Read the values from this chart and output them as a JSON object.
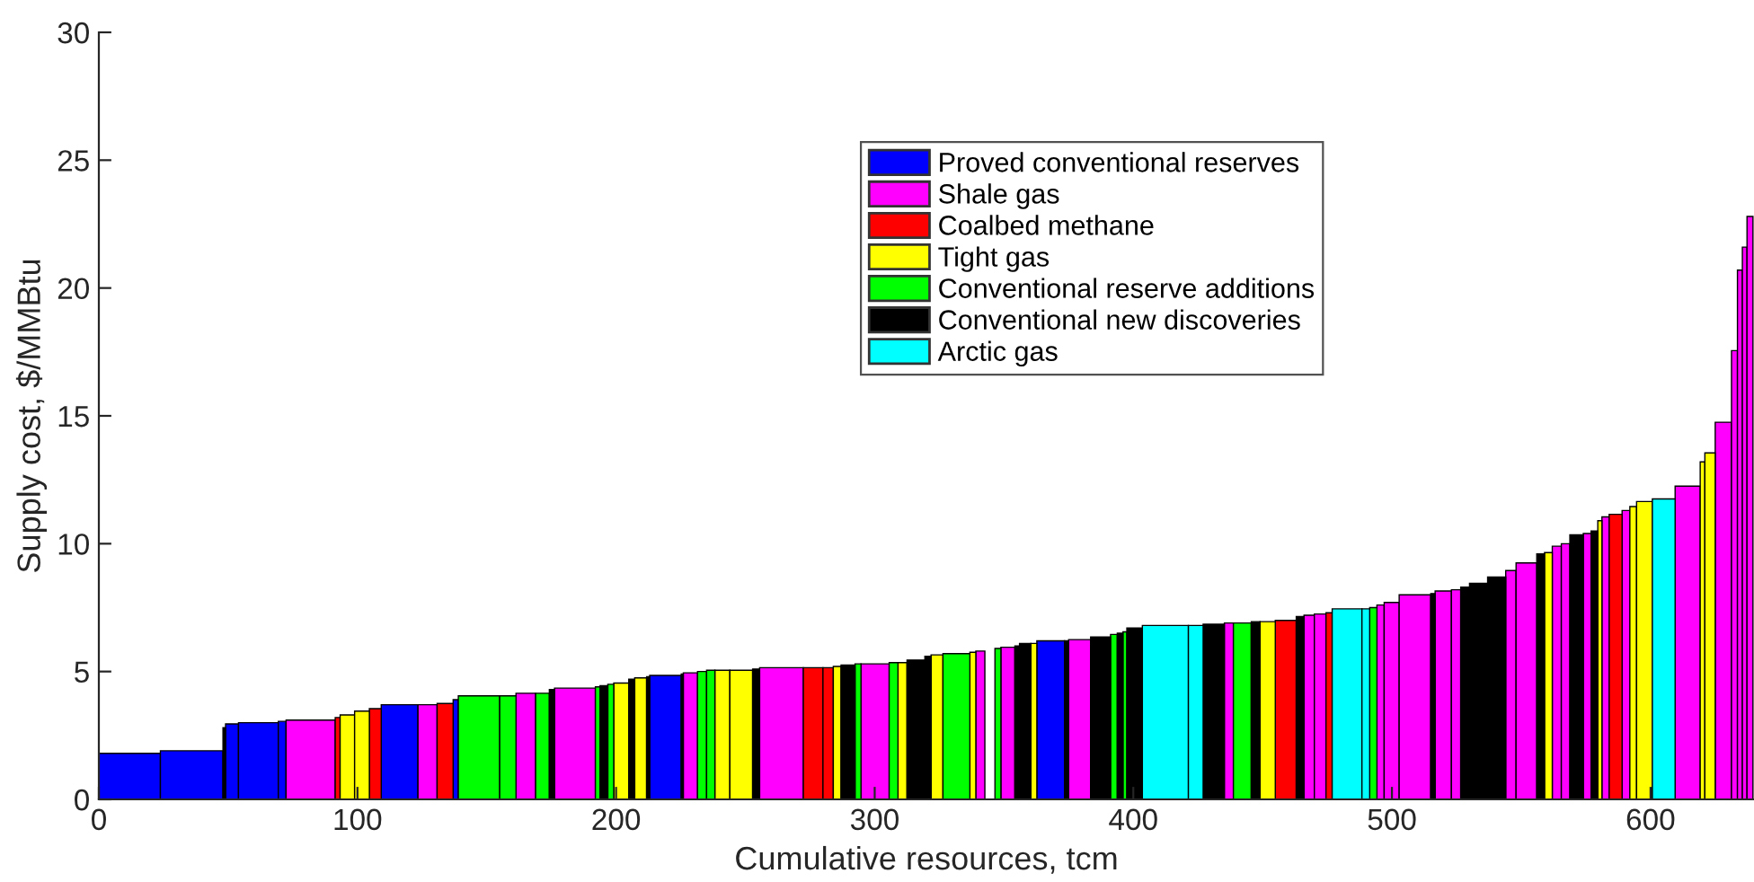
{
  "chart_data": {
    "type": "histogram",
    "xlabel": "Cumulative resources, tcm",
    "ylabel": "Supply cost, $/MMBtu",
    "xlim": [
      0,
      640
    ],
    "xticks": [
      0,
      100,
      200,
      300,
      400,
      500,
      600
    ],
    "ylim": [
      0,
      30
    ],
    "yticks": [
      0,
      5,
      10,
      15,
      20,
      25,
      30
    ],
    "grid": false,
    "legend": "top",
    "bins": [
      0,
      23.8,
      48,
      49,
      54,
      69.4,
      72.4,
      91.4,
      93.3,
      98.9,
      104.6,
      109.2,
      123.4,
      130.8,
      137,
      139,
      155,
      161.3,
      168.9,
      174.2,
      176.2,
      192,
      193.8,
      196.8,
      199.1,
      204.9,
      207.2,
      211.8,
      213,
      225.2,
      226,
      231.5,
      235,
      238.2,
      244,
      252.8,
      255.5,
      272.4,
      280,
      284,
      287,
      292.4,
      294.7,
      305.6,
      309,
      312.5,
      319.4,
      321.8,
      326.4,
      336.8,
      339.1,
      342.6,
      346.5,
      348.8,
      354.2,
      356,
      360.4,
      362.7,
      373.4,
      375,
      383.5,
      391.2,
      393.8,
      396,
      397.5,
      403.5,
      421.3,
      427,
      435.2,
      438.7,
      445.6,
      449,
      454.9,
      463,
      466,
      470,
      474.5,
      476.9,
      488.4,
      491.4,
      494.2,
      497,
      502.8,
      515,
      516.7,
      523,
      526.6,
      530,
      537,
      544,
      548,
      556,
      559,
      562,
      565.5,
      568.8,
      574,
      577,
      579.6,
      581.2,
      584,
      589,
      592,
      594.6,
      600.7,
      609.5,
      619.2,
      621,
      625,
      631.3,
      633.6,
      635.5,
      637.3,
      639.6
    ],
    "series": [
      {
        "name": "Proved conventional reserves",
        "color": "#0000ff",
        "values": [
          1.8,
          1.9,
          null,
          2.95,
          3.0,
          3.05,
          null,
          null,
          null,
          null,
          null,
          3.7,
          null,
          null,
          3.9,
          null,
          null,
          null,
          null,
          null,
          null,
          null,
          null,
          null,
          null,
          null,
          null,
          null,
          4.85,
          null,
          null,
          null,
          null,
          null,
          null,
          null,
          null,
          null,
          null,
          null,
          null,
          null,
          null,
          null,
          null,
          null,
          null,
          null,
          null,
          null,
          null,
          null,
          null,
          null,
          null,
          null,
          null,
          6.2,
          null,
          null,
          null,
          null,
          null,
          null,
          null,
          null,
          null,
          null,
          null,
          null,
          null,
          null,
          null,
          null,
          null,
          null,
          null,
          null,
          null,
          null,
          null,
          null,
          null,
          null,
          null,
          null,
          null,
          null,
          null,
          null,
          null,
          null,
          null,
          null,
          null,
          null,
          null,
          null,
          null,
          null,
          null,
          null,
          null,
          null,
          null,
          null,
          null,
          null,
          null,
          null,
          null,
          null,
          null
        ]
      },
      {
        "name": "Shale gas",
        "color": "#ff00ff",
        "values": [
          null,
          null,
          null,
          null,
          null,
          null,
          3.1,
          null,
          null,
          null,
          null,
          null,
          3.7,
          null,
          null,
          null,
          null,
          4.15,
          null,
          null,
          4.35,
          null,
          null,
          null,
          null,
          null,
          null,
          null,
          null,
          null,
          4.95,
          null,
          null,
          null,
          null,
          null,
          5.15,
          null,
          null,
          null,
          null,
          null,
          5.3,
          null,
          null,
          null,
          null,
          null,
          null,
          null,
          5.8,
          null,
          null,
          5.95,
          null,
          null,
          null,
          null,
          null,
          6.25,
          null,
          null,
          null,
          null,
          null,
          null,
          null,
          null,
          6.9,
          null,
          null,
          null,
          null,
          null,
          7.2,
          7.25,
          null,
          null,
          null,
          null,
          7.6,
          7.7,
          8.0,
          null,
          8.15,
          8.2,
          null,
          null,
          null,
          8.95,
          9.25,
          null,
          null,
          9.9,
          10.0,
          null,
          10.4,
          null,
          null,
          11.05,
          null,
          11.3,
          null,
          null,
          null,
          12.25,
          null,
          null,
          14.75,
          17.55,
          20.7,
          21.6,
          22.8
        ]
      },
      {
        "name": "Coalbed methane",
        "color": "#ff0000",
        "values": [
          null,
          null,
          null,
          null,
          null,
          null,
          null,
          3.2,
          null,
          null,
          3.55,
          null,
          null,
          3.75,
          null,
          null,
          null,
          null,
          null,
          null,
          null,
          null,
          null,
          null,
          null,
          null,
          null,
          null,
          null,
          null,
          null,
          null,
          null,
          null,
          null,
          null,
          null,
          5.15,
          5.15,
          null,
          null,
          null,
          null,
          null,
          null,
          null,
          null,
          null,
          null,
          null,
          null,
          null,
          null,
          null,
          null,
          null,
          null,
          null,
          null,
          null,
          null,
          null,
          null,
          null,
          null,
          null,
          null,
          null,
          null,
          null,
          null,
          null,
          7.0,
          null,
          null,
          null,
          7.3,
          null,
          null,
          null,
          null,
          null,
          null,
          null,
          null,
          null,
          null,
          null,
          null,
          null,
          null,
          null,
          null,
          null,
          null,
          null,
          null,
          null,
          null,
          null,
          11.15,
          null,
          null,
          null,
          null,
          null,
          null,
          null,
          null,
          null,
          null,
          null,
          null
        ]
      },
      {
        "name": "Tight gas",
        "color": "#ffff00",
        "values": [
          null,
          null,
          null,
          null,
          null,
          null,
          null,
          null,
          3.3,
          3.45,
          null,
          null,
          null,
          null,
          null,
          null,
          null,
          null,
          null,
          null,
          null,
          null,
          null,
          null,
          4.55,
          null,
          4.75,
          null,
          null,
          null,
          null,
          null,
          null,
          5.05,
          5.05,
          null,
          null,
          null,
          null,
          5.2,
          null,
          null,
          null,
          null,
          5.35,
          null,
          null,
          5.65,
          null,
          5.75,
          null,
          null,
          null,
          null,
          null,
          null,
          6.1,
          null,
          null,
          null,
          null,
          null,
          null,
          null,
          null,
          null,
          null,
          null,
          null,
          null,
          null,
          6.95,
          null,
          null,
          null,
          null,
          null,
          null,
          null,
          null,
          null,
          null,
          null,
          null,
          null,
          null,
          null,
          null,
          null,
          null,
          null,
          null,
          9.65,
          null,
          null,
          null,
          null,
          null,
          10.9,
          null,
          null,
          null,
          11.45,
          11.65,
          null,
          null,
          13.2,
          13.55,
          null,
          null,
          null,
          null,
          null
        ]
      },
      {
        "name": "Conventional reserve additions",
        "color": "#00ff00",
        "values": [
          null,
          null,
          null,
          null,
          null,
          null,
          null,
          null,
          null,
          null,
          null,
          null,
          null,
          null,
          null,
          4.05,
          4.05,
          null,
          4.15,
          null,
          null,
          4.4,
          null,
          4.5,
          null,
          null,
          null,
          null,
          null,
          null,
          null,
          5.0,
          5.05,
          null,
          null,
          null,
          null,
          null,
          null,
          null,
          null,
          5.3,
          null,
          5.35,
          null,
          null,
          null,
          null,
          5.7,
          null,
          null,
          null,
          5.9,
          null,
          null,
          null,
          null,
          null,
          null,
          null,
          null,
          6.45,
          null,
          6.55,
          null,
          null,
          null,
          null,
          null,
          6.9,
          null,
          null,
          null,
          null,
          null,
          null,
          null,
          null,
          null,
          7.5,
          null,
          null,
          null,
          null,
          null,
          null,
          null,
          null,
          null,
          null,
          null,
          null,
          null,
          null,
          null,
          null,
          null,
          null,
          null,
          null,
          null,
          null,
          null,
          null,
          null,
          null,
          null,
          null,
          null,
          null,
          null,
          null,
          null
        ]
      },
      {
        "name": "Conventional new discoveries",
        "color": "#000000",
        "values": [
          null,
          null,
          2.8,
          null,
          null,
          null,
          null,
          null,
          null,
          null,
          null,
          null,
          null,
          null,
          null,
          null,
          null,
          null,
          null,
          4.3,
          null,
          null,
          4.45,
          null,
          null,
          4.7,
          null,
          4.8,
          null,
          4.9,
          null,
          null,
          null,
          null,
          null,
          5.1,
          null,
          null,
          null,
          null,
          5.25,
          null,
          null,
          null,
          null,
          5.45,
          5.6,
          null,
          null,
          null,
          null,
          null,
          null,
          null,
          6.0,
          6.1,
          null,
          null,
          6.2,
          null,
          6.35,
          null,
          6.5,
          null,
          6.7,
          null,
          null,
          6.85,
          null,
          null,
          6.95,
          null,
          null,
          7.15,
          null,
          null,
          null,
          null,
          null,
          null,
          null,
          null,
          null,
          8.05,
          null,
          null,
          8.3,
          8.45,
          8.7,
          null,
          null,
          9.6,
          null,
          null,
          null,
          10.35,
          null,
          10.5,
          null,
          null,
          null,
          null,
          null,
          null,
          null,
          null,
          null,
          null,
          null,
          null,
          null,
          null,
          null
        ]
      },
      {
        "name": "Arctic gas",
        "color": "#00ffff",
        "values": [
          null,
          null,
          null,
          null,
          null,
          null,
          null,
          null,
          null,
          null,
          null,
          null,
          null,
          null,
          null,
          null,
          null,
          null,
          null,
          null,
          null,
          null,
          null,
          null,
          null,
          null,
          null,
          null,
          null,
          null,
          null,
          null,
          null,
          null,
          null,
          null,
          null,
          null,
          null,
          null,
          null,
          null,
          null,
          null,
          null,
          null,
          null,
          null,
          null,
          null,
          null,
          null,
          null,
          null,
          null,
          null,
          null,
          null,
          null,
          null,
          null,
          null,
          null,
          null,
          null,
          6.8,
          6.8,
          null,
          null,
          null,
          null,
          null,
          null,
          null,
          null,
          null,
          null,
          7.45,
          7.45,
          null,
          null,
          null,
          null,
          null,
          null,
          null,
          null,
          null,
          null,
          null,
          null,
          null,
          null,
          null,
          null,
          null,
          null,
          null,
          null,
          null,
          null,
          null,
          null,
          null,
          11.75,
          null,
          null,
          null,
          null,
          null,
          null,
          null,
          null
        ]
      }
    ]
  }
}
